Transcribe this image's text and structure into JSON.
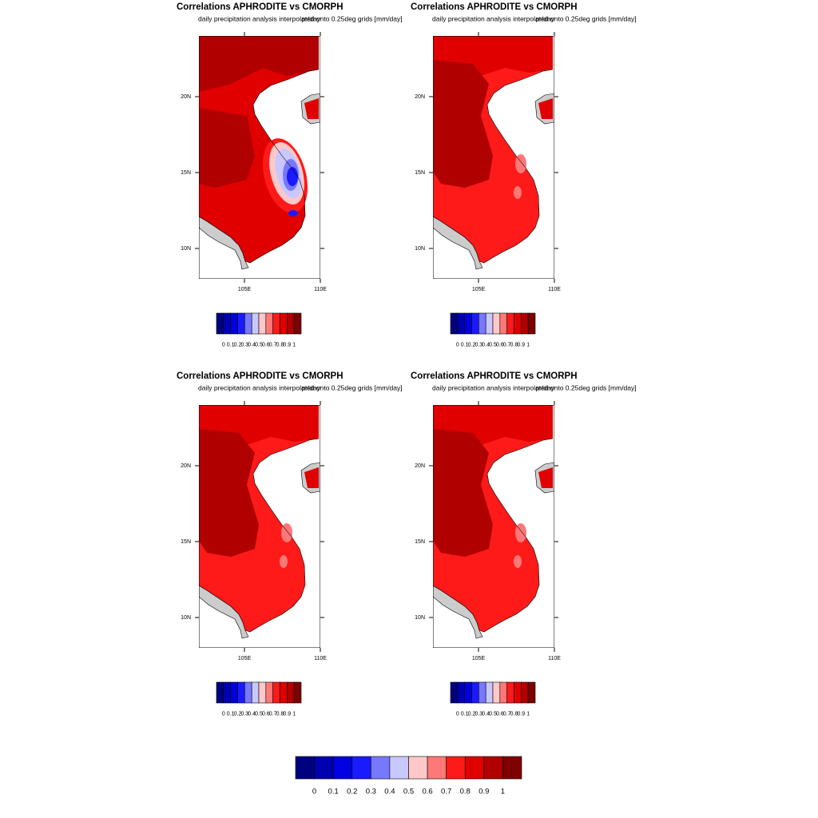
{
  "panels": [
    {
      "title": "Correlations APHRODITE vs CMORPH",
      "subtitle": "daily precipitation analysis interpolated onto 0.25deg grids [mm/day]",
      "right_string": "pr/day"
    },
    {
      "title": "Correlations APHRODITE vs CMORPH",
      "subtitle": "daily precipitation analysis interpolated onto 0.25deg grids [mm/day]",
      "right_string": "pr/day"
    },
    {
      "title": "Correlations APHRODITE vs CMORPH",
      "subtitle": "daily precipitation analysis interpolated onto 0.25deg grids [mm/day]",
      "right_string": "pr/day"
    },
    {
      "title": "Correlations APHRODITE vs CMORPH",
      "subtitle": "daily precipitation analysis interpolated onto 0.25deg grids [mm/day]",
      "right_string": "pr/day"
    }
  ],
  "map": {
    "lon_range": [
      102,
      110
    ],
    "lat_range": [
      8,
      24
    ],
    "lon_ticks": [
      {
        "value": 105,
        "label": "105E"
      },
      {
        "value": 110,
        "label": "110E"
      }
    ],
    "lat_ticks": [
      {
        "value": 10,
        "label": "10N"
      },
      {
        "value": 15,
        "label": "15N"
      },
      {
        "value": 20,
        "label": "20N"
      }
    ]
  },
  "colorbar": {
    "levels": [
      0,
      0.1,
      0.2,
      0.3,
      0.4,
      0.5,
      0.6,
      0.7,
      0.8,
      0.9,
      1
    ],
    "colors": [
      "#00007f",
      "#0000b0",
      "#0000e0",
      "#1a1aff",
      "#7878ff",
      "#c8c8ff",
      "#ffc8c8",
      "#ff7878",
      "#ff1a1a",
      "#e00000",
      "#b00000",
      "#7f0000"
    ]
  }
}
